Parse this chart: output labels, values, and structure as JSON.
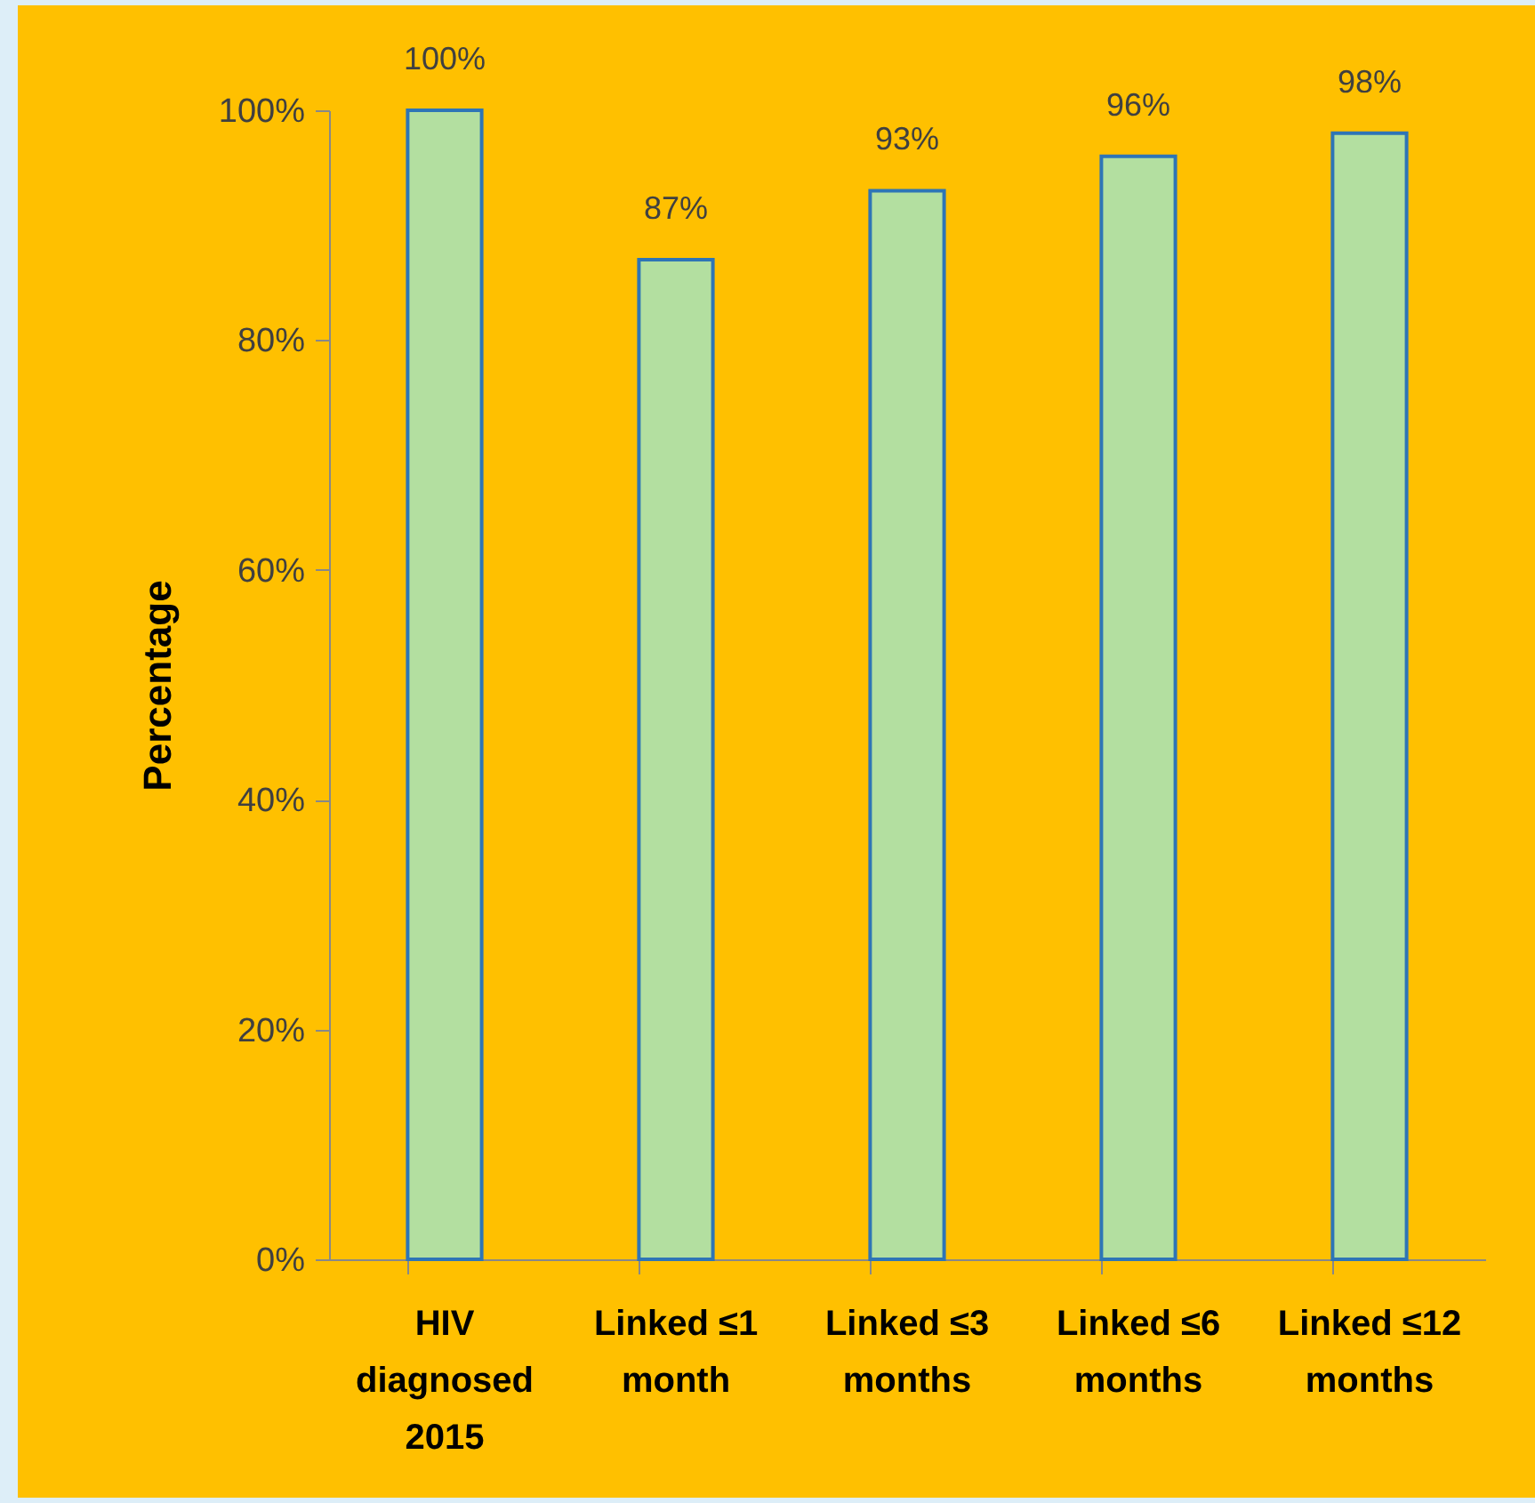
{
  "chart_data": {
    "type": "bar",
    "ylabel": "Percentage",
    "categories": [
      "HIV diagnosed 2015",
      "Linked ≤1 month",
      "Linked ≤3 months",
      "Linked ≤6 months",
      "Linked ≤12 months"
    ],
    "values": [
      100,
      87,
      93,
      96,
      98
    ],
    "value_labels": [
      "100%",
      "87%",
      "93%",
      "96%",
      "98%"
    ],
    "color": "#b3dfa0",
    "ylim": [
      0,
      100
    ],
    "yticks": [
      {
        "value": 0,
        "label": "0%"
      },
      {
        "value": 20,
        "label": "20%"
      },
      {
        "value": 40,
        "label": "40%"
      },
      {
        "value": 60,
        "label": "60%"
      },
      {
        "value": 80,
        "label": "80%"
      },
      {
        "value": 100,
        "label": "100%"
      }
    ],
    "grid": false
  }
}
